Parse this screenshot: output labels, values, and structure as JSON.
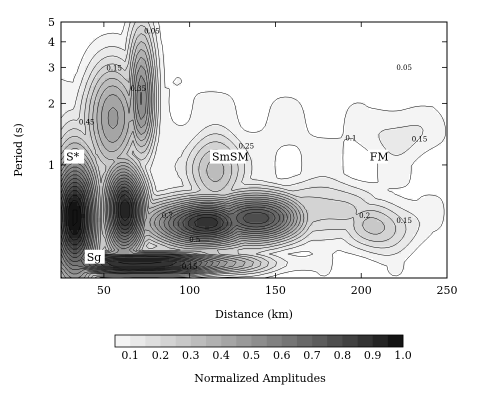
{
  "chart_data": {
    "type": "heatmap",
    "title": "",
    "xlabel": "Distance (km)",
    "ylabel": "Period (s)",
    "xlim": [
      25,
      250
    ],
    "ylim": [
      0.28,
      5
    ],
    "y_scale": "log",
    "x_ticks": [
      50,
      100,
      150,
      200,
      250
    ],
    "y_ticks": [
      1,
      2,
      3,
      4,
      5
    ],
    "colorbar": {
      "label": "Normalized Amplitudes",
      "range": [
        0.05,
        1.0
      ],
      "ticks": [
        "0.1",
        "0.2",
        "0.3",
        "0.4",
        "0.5",
        "0.6",
        "0.7",
        "0.8",
        "0.9",
        "1.0"
      ],
      "color_low": "#ffffff",
      "color_high": "#000000"
    },
    "phase_labels": [
      {
        "text": "S*",
        "x": 28,
        "y": 1.05
      },
      {
        "text": "SmSM",
        "x": 113,
        "y": 1.05
      },
      {
        "text": "FM",
        "x": 205,
        "y": 1.05
      },
      {
        "text": "Sg",
        "x": 40,
        "y": 0.34
      }
    ],
    "contour_labels": [
      {
        "text": "0.05",
        "x": 225,
        "y": 2.92
      },
      {
        "text": "0.05",
        "x": 78,
        "y": 4.4
      },
      {
        "text": "0.1",
        "x": 194,
        "y": 1.32
      },
      {
        "text": "0.15",
        "x": 234,
        "y": 1.3
      },
      {
        "text": "0.15",
        "x": 56,
        "y": 2.9
      },
      {
        "text": "0.15",
        "x": 225,
        "y": 0.52
      },
      {
        "text": "0.2",
        "x": 202,
        "y": 0.55
      },
      {
        "text": "0.25",
        "x": 133,
        "y": 1.2
      },
      {
        "text": "0.35",
        "x": 70,
        "y": 2.3
      },
      {
        "text": "0.45",
        "x": 40,
        "y": 1.58
      },
      {
        "text": "0.5",
        "x": 103,
        "y": 0.42
      },
      {
        "text": "0.7",
        "x": 87,
        "y": 0.55
      },
      {
        "text": "0.15",
        "x": 100,
        "y": 0.31
      }
    ],
    "contour_levels": [
      0.05,
      0.1,
      0.15,
      0.2,
      0.25,
      0.3,
      0.35,
      0.4,
      0.45,
      0.5,
      0.55,
      0.6,
      0.65,
      0.7,
      0.75,
      0.8,
      0.85,
      0.9,
      0.95,
      1.0
    ]
  }
}
